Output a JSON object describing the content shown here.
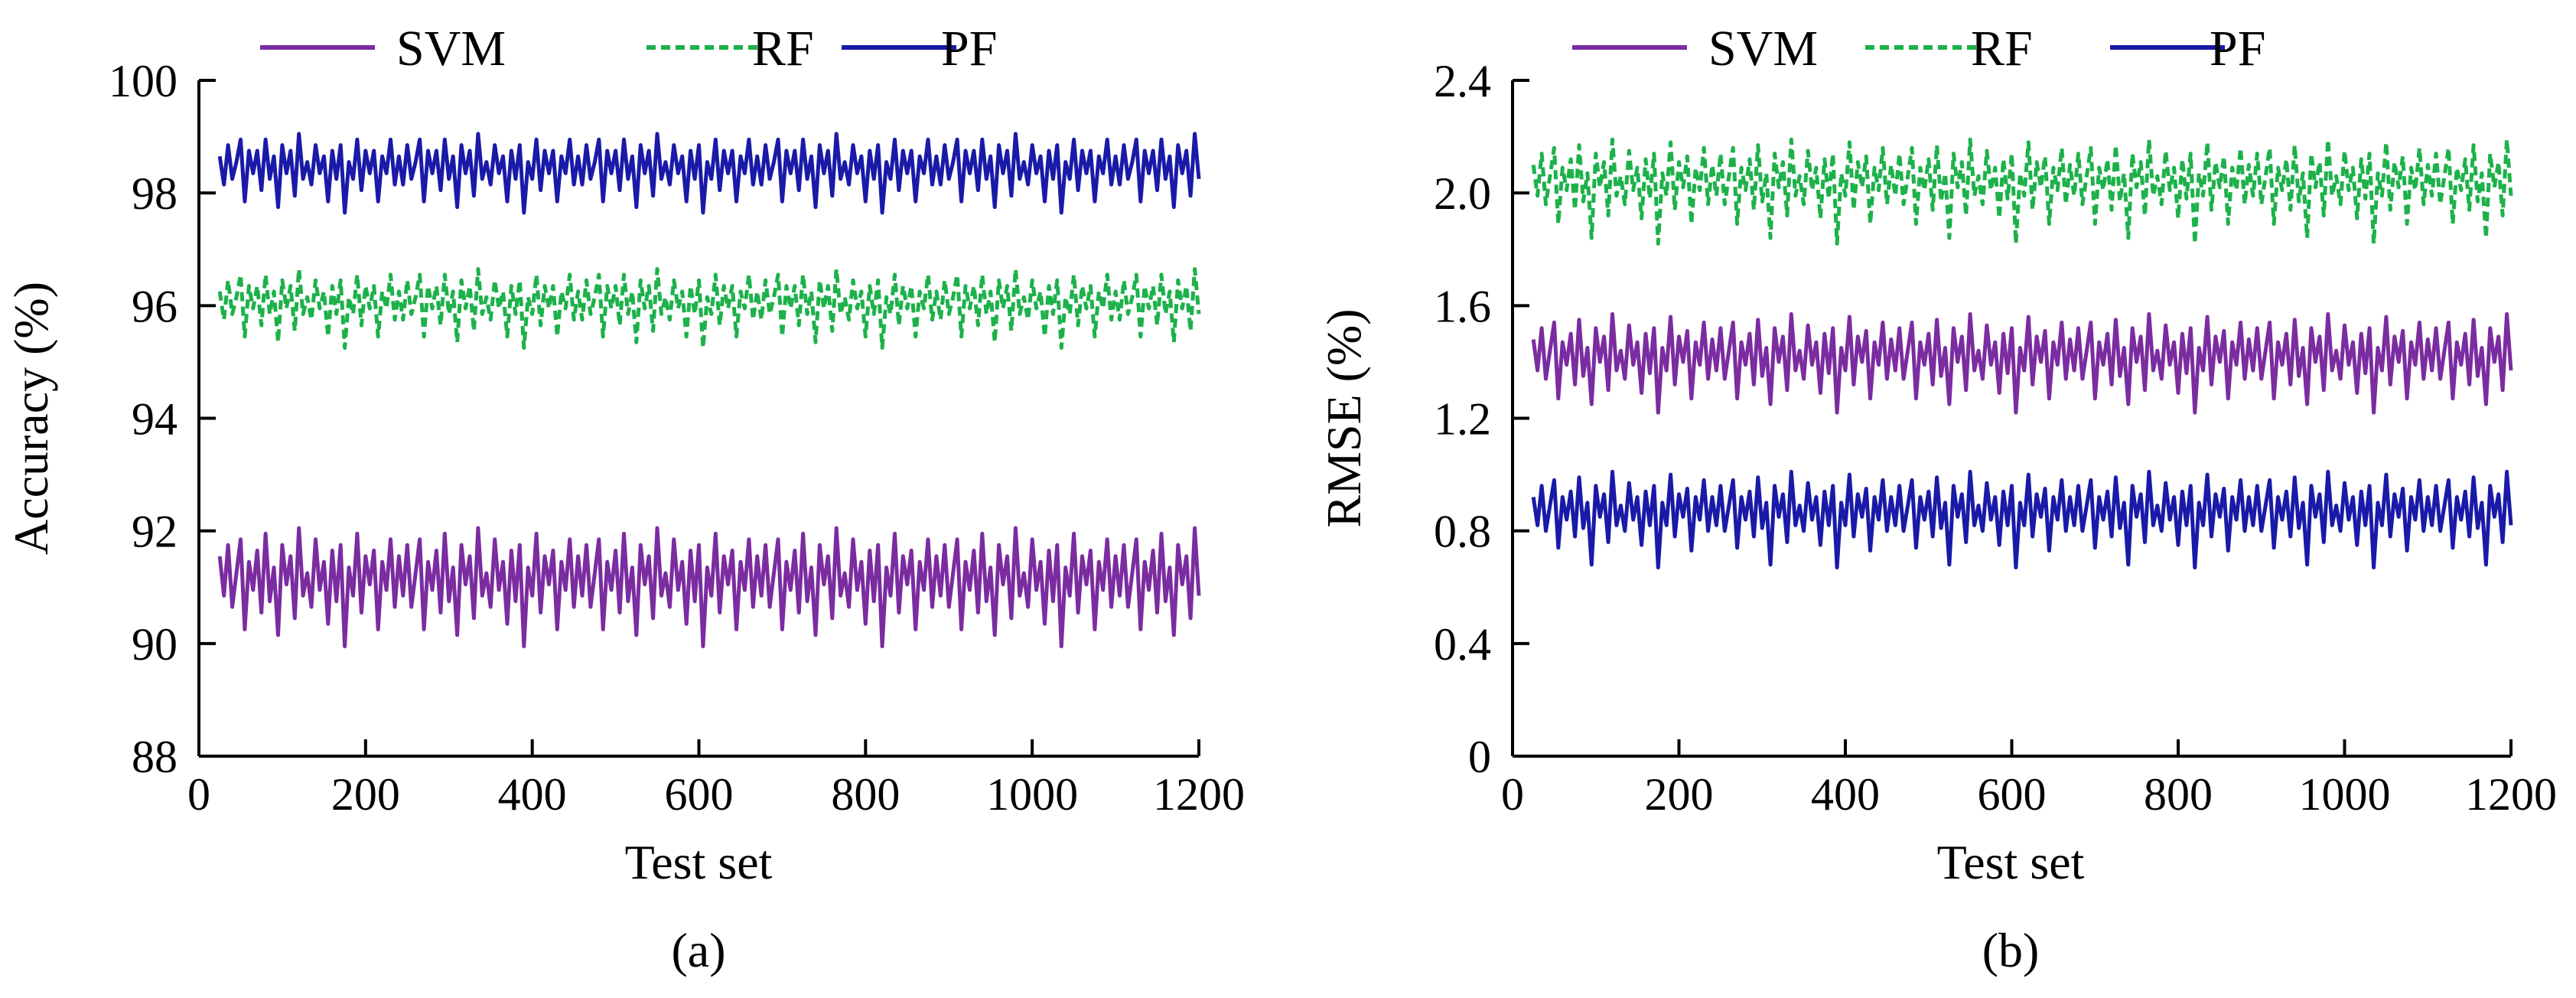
{
  "colors": {
    "SVM": "#7b2ca0",
    "RF": "#1db14a",
    "PF": "#1a1aa8",
    "axis": "#000000"
  },
  "legend": [
    {
      "name": "SVM",
      "style": "solid"
    },
    {
      "name": "RF",
      "style": "dashed"
    },
    {
      "name": "PF",
      "style": "solid"
    }
  ],
  "chart_data": [
    {
      "type": "line",
      "panel_label": "(a)",
      "xlabel": "Test set",
      "ylabel": "Accuracy (%)",
      "xlim": [
        0,
        1200
      ],
      "ylim": [
        88,
        100
      ],
      "x_ticks": [
        0,
        200,
        400,
        600,
        800,
        1000,
        1200
      ],
      "x_tick_labels": [
        "0",
        "200",
        "400",
        "600",
        "800",
        "1000",
        "1200"
      ],
      "y_ticks": [
        88,
        90,
        92,
        94,
        96,
        98,
        100
      ],
      "y_tick_labels": [
        "88",
        "90",
        "92",
        "94",
        "96",
        "98",
        "100"
      ],
      "x_start": 25,
      "x_end": 1200,
      "x_step": 5,
      "series": [
        {
          "name": "SVM",
          "mean": 91.15,
          "fluct": [
            0.4,
            -0.3,
            0.6,
            -0.5,
            0.1,
            0.7,
            -0.9,
            0.3,
            -0.2,
            0.5,
            -0.6,
            0.8,
            -0.4,
            0.2,
            -1.0,
            0.6,
            -0.1,
            0.4,
            -0.7,
            0.9,
            -0.3,
            0.1,
            -0.5,
            0.7,
            -0.2,
            0.3,
            -0.8,
            0.5,
            -0.4,
            0.6,
            -1.2,
            0.2,
            -0.3,
            0.8,
            -0.6,
            0.4,
            -0.1,
            0.5,
            -0.9,
            0.3,
            -0.2,
            0.7,
            -0.5
          ]
        },
        {
          "name": "RF",
          "mean": 96.05,
          "fluct": [
            0.2,
            -0.3,
            0.4,
            -0.2,
            0.1,
            0.5,
            -0.6,
            0.3,
            -0.1,
            0.3,
            -0.4,
            0.5,
            -0.2,
            0.2,
            -0.7,
            0.4,
            -0.1,
            0.3,
            -0.5,
            0.6,
            -0.2,
            0.1,
            -0.3,
            0.4,
            -0.1,
            0.2,
            -0.6,
            0.3,
            -0.2,
            0.4,
            -0.8,
            0.1,
            -0.2,
            0.5,
            -0.4,
            0.3,
            -0.1,
            0.3,
            -0.6,
            0.2,
            -0.1,
            0.5,
            -0.3
          ]
        },
        {
          "name": "PF",
          "mean": 98.45,
          "fluct": [
            0.2,
            -0.3,
            0.4,
            -0.2,
            0.1,
            0.5,
            -0.6,
            0.3,
            -0.1,
            0.3,
            -0.4,
            0.5,
            -0.2,
            0.2,
            -0.7,
            0.4,
            -0.1,
            0.3,
            -0.5,
            0.6,
            -0.2,
            0.1,
            -0.3,
            0.4,
            -0.1,
            0.2,
            -0.6,
            0.3,
            -0.2,
            0.4,
            -0.8,
            0.1,
            -0.2,
            0.5,
            -0.4,
            0.3,
            -0.1,
            0.3,
            -0.6,
            0.2,
            -0.1,
            0.5,
            -0.3
          ]
        }
      ]
    },
    {
      "type": "line",
      "panel_label": "(b)",
      "xlabel": "Test set",
      "ylabel": "RMSE (%)",
      "xlim": [
        0,
        1200
      ],
      "ylim": [
        0,
        2.4
      ],
      "x_ticks": [
        0,
        200,
        400,
        600,
        800,
        1000,
        1200
      ],
      "x_tick_labels": [
        "0",
        "200",
        "400",
        "600",
        "800",
        "1000",
        "1200"
      ],
      "y_ticks": [
        0,
        0.4,
        0.8,
        1.2,
        1.6,
        2.0,
        2.4
      ],
      "y_tick_labels": [
        "0",
        "0.4",
        "0.8",
        "1.2",
        "1.6",
        "2.0",
        "2.4"
      ],
      "x_start": 25,
      "x_end": 1200,
      "x_step": 5,
      "series": [
        {
          "name": "SVM",
          "mean": 1.42,
          "fluct": [
            0.06,
            -0.05,
            0.1,
            -0.08,
            0.02,
            0.12,
            -0.15,
            0.05,
            -0.03,
            0.08,
            -0.1,
            0.13,
            -0.07,
            0.03,
            -0.17,
            0.1,
            -0.02,
            0.07,
            -0.12,
            0.15,
            -0.05,
            0.02,
            -0.08,
            0.11,
            -0.03,
            0.05,
            -0.13,
            0.08,
            -0.06,
            0.1,
            -0.2,
            0.03,
            -0.05,
            0.14,
            -0.1,
            0.07,
            -0.02,
            0.09,
            -0.15,
            0.05,
            -0.03,
            0.12,
            -0.08
          ]
        },
        {
          "name": "RF",
          "mean": 2.04,
          "fluct": [
            0.06,
            -0.05,
            0.1,
            -0.08,
            0.02,
            0.12,
            -0.15,
            0.05,
            -0.03,
            0.08,
            -0.1,
            0.13,
            -0.07,
            0.03,
            -0.2,
            0.1,
            -0.02,
            0.07,
            -0.12,
            0.15,
            -0.05,
            0.02,
            -0.08,
            0.11,
            -0.03,
            0.05,
            -0.13,
            0.08,
            -0.06,
            0.1,
            -0.22,
            0.03,
            -0.05,
            0.14,
            -0.1,
            0.07,
            -0.02,
            0.09,
            -0.15,
            0.05,
            -0.03,
            0.12,
            -0.08
          ]
        },
        {
          "name": "PF",
          "mean": 0.87,
          "fluct": [
            0.05,
            -0.05,
            0.09,
            -0.07,
            0.02,
            0.11,
            -0.13,
            0.05,
            -0.03,
            0.07,
            -0.09,
            0.12,
            -0.06,
            0.03,
            -0.19,
            0.09,
            -0.02,
            0.06,
            -0.11,
            0.14,
            -0.05,
            0.02,
            -0.07,
            0.1,
            -0.03,
            0.05,
            -0.12,
            0.07,
            -0.05,
            0.09,
            -0.2,
            0.03,
            -0.05,
            0.13,
            -0.09,
            0.06,
            -0.02,
            0.08,
            -0.14,
            0.05,
            -0.03,
            0.11,
            -0.07
          ]
        }
      ]
    }
  ]
}
